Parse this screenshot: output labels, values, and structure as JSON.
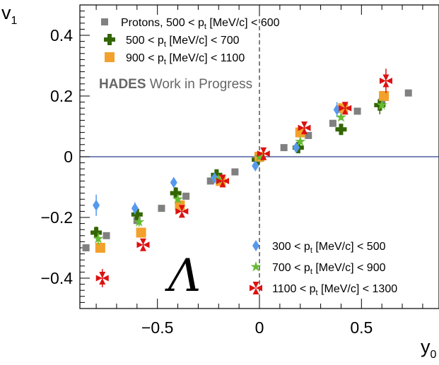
{
  "chart_data": {
    "type": "scatter",
    "xlabel": "y",
    "xlabel_sub": "0",
    "ylabel": "v",
    "ylabel_sub": "1",
    "xlim": [
      -0.88,
      0.88
    ],
    "ylim": [
      -0.5,
      0.5
    ],
    "xticks": [
      {
        "v": -0.5,
        "label": "−0.5"
      },
      {
        "v": 0,
        "label": "0"
      },
      {
        "v": 0.5,
        "label": "0.5"
      }
    ],
    "yticks": [
      {
        "v": 0.4,
        "label": "0.4"
      },
      {
        "v": 0.2,
        "label": "0.2"
      },
      {
        "v": 0,
        "label": "0"
      },
      {
        "v": -0.2,
        "label": "−0.2"
      },
      {
        "v": -0.4,
        "label": "−0.4"
      }
    ],
    "annotation": "HADES",
    "annotation_rest": " Work in Progress",
    "particle_symbol": "Λ",
    "series": [
      {
        "name": "Protons, 500 < p",
        "name_sub": "t",
        "name_tail": " [MeV/c] < 600",
        "marker": "square-small",
        "color": "#808080",
        "points": [
          {
            "x": -0.85,
            "y": -0.3
          },
          {
            "x": -0.75,
            "y": -0.26
          },
          {
            "x": -0.6,
            "y": -0.21
          },
          {
            "x": -0.48,
            "y": -0.17
          },
          {
            "x": -0.36,
            "y": -0.13
          },
          {
            "x": -0.24,
            "y": -0.08
          },
          {
            "x": -0.12,
            "y": -0.05
          },
          {
            "x": 0.12,
            "y": 0.03
          },
          {
            "x": 0.24,
            "y": 0.07
          },
          {
            "x": 0.36,
            "y": 0.11
          },
          {
            "x": 0.48,
            "y": 0.15
          },
          {
            "x": 0.6,
            "y": 0.18
          },
          {
            "x": 0.73,
            "y": 0.21
          }
        ]
      },
      {
        "name": "500 < p",
        "name_sub": "t",
        "name_tail": " [MeV/c] < 700",
        "marker": "cross",
        "color": "#336600",
        "points": [
          {
            "x": -0.8,
            "y": -0.25,
            "err": 0.02
          },
          {
            "x": -0.6,
            "y": -0.19,
            "err": 0.02
          },
          {
            "x": -0.41,
            "y": -0.12,
            "err": 0.02
          },
          {
            "x": -0.21,
            "y": -0.06,
            "err": 0.01
          },
          {
            "x": -0.01,
            "y": -0.01,
            "err": 0.01
          },
          {
            "x": 0.19,
            "y": 0.03,
            "err": 0.01
          },
          {
            "x": 0.4,
            "y": 0.09,
            "err": 0.015
          },
          {
            "x": 0.59,
            "y": 0.17,
            "err": 0.03
          }
        ]
      },
      {
        "name": "900 < p",
        "name_sub": "t",
        "name_tail": " [MeV/c] < 1100",
        "marker": "square",
        "color": "#F2A12C",
        "points": [
          {
            "x": -0.78,
            "y": -0.3
          },
          {
            "x": -0.58,
            "y": -0.25
          },
          {
            "x": -0.39,
            "y": -0.16
          },
          {
            "x": -0.19,
            "y": -0.08
          },
          {
            "x": 0.0,
            "y": 0.0
          },
          {
            "x": 0.2,
            "y": 0.08
          },
          {
            "x": 0.41,
            "y": 0.16
          },
          {
            "x": 0.61,
            "y": 0.2
          }
        ]
      },
      {
        "name": "300 < p",
        "name_sub": "t",
        "name_tail": " [MeV/c] < 500",
        "marker": "diamond",
        "color": "#5599EE",
        "points": [
          {
            "x": -0.8,
            "y": -0.16,
            "err": 0.035
          },
          {
            "x": -0.61,
            "y": -0.17,
            "err": 0.02
          },
          {
            "x": -0.42,
            "y": -0.085,
            "err": 0.015
          },
          {
            "x": -0.22,
            "y": -0.07,
            "err": 0.01
          },
          {
            "x": -0.02,
            "y": -0.03,
            "err": 0.01
          },
          {
            "x": 0.18,
            "y": 0.03,
            "err": 0.01
          },
          {
            "x": 0.38,
            "y": 0.155,
            "err": 0.025
          }
        ]
      },
      {
        "name": "700 < p",
        "name_sub": "t",
        "name_tail": " [MeV/c] < 900",
        "marker": "star",
        "color": "#66BB33",
        "points": [
          {
            "x": -0.79,
            "y": -0.27,
            "err": 0.02
          },
          {
            "x": -0.59,
            "y": -0.215,
            "err": 0.015
          },
          {
            "x": -0.4,
            "y": -0.14,
            "err": 0.01
          },
          {
            "x": -0.2,
            "y": -0.075,
            "err": 0.01
          },
          {
            "x": 0.0,
            "y": 0.0,
            "err": 0.01
          },
          {
            "x": 0.2,
            "y": 0.05,
            "err": 0.01
          },
          {
            "x": 0.4,
            "y": 0.13,
            "err": 0.01
          },
          {
            "x": 0.6,
            "y": 0.17,
            "err": 0.015
          }
        ]
      },
      {
        "name": "1100 < p",
        "name_sub": "t",
        "name_tail": " [MeV/c] < 1300",
        "marker": "star-cross",
        "color": "#DD1111",
        "points": [
          {
            "x": -0.77,
            "y": -0.4,
            "err": 0.03
          },
          {
            "x": -0.57,
            "y": -0.29,
            "err": 0.015
          },
          {
            "x": -0.38,
            "y": -0.18,
            "err": 0.015
          },
          {
            "x": -0.18,
            "y": -0.08,
            "err": 0.01
          },
          {
            "x": 0.02,
            "y": 0.01,
            "err": 0.01
          },
          {
            "x": 0.22,
            "y": 0.095,
            "err": 0.015
          },
          {
            "x": 0.42,
            "y": 0.16,
            "err": 0.02
          },
          {
            "x": 0.62,
            "y": 0.25,
            "err": 0.04
          }
        ]
      }
    ]
  }
}
